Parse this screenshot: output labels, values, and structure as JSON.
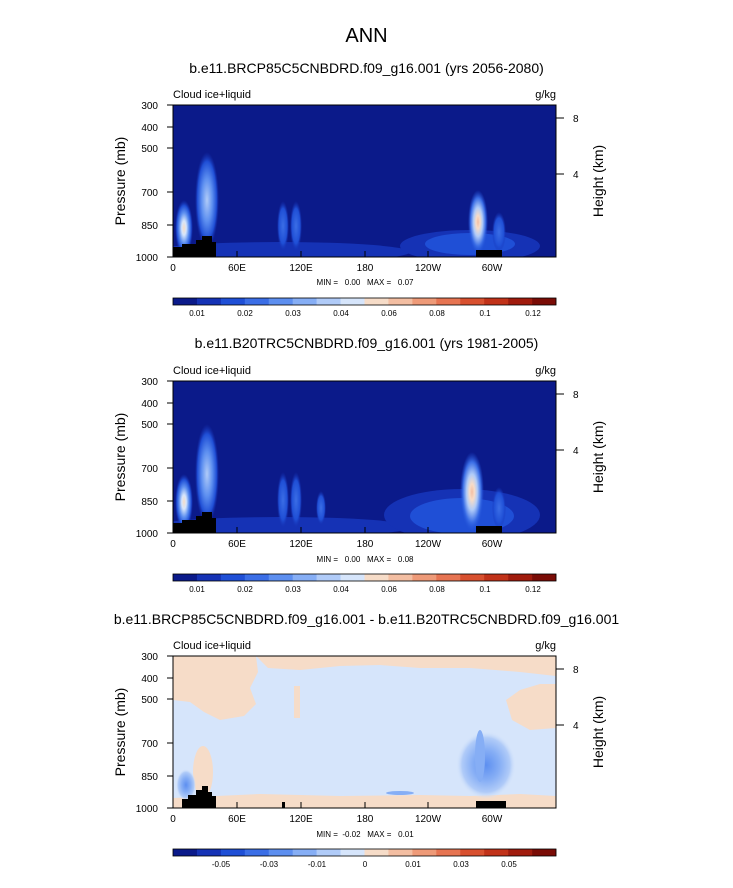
{
  "figure": {
    "title": "ANN"
  },
  "chart_data": [
    {
      "type": "heatmap",
      "title": "b.e11.BRCP85C5CNBDRD.f09_g16.001 (yrs 2056-2080)",
      "subtitle_left": "Cloud ice+liquid",
      "subtitle_right": "g/kg",
      "ylabel": "Pressure (mb)",
      "ylabel_right": "Height (km)",
      "x_ticks": [
        "0",
        "60E",
        "120E",
        "180",
        "120W",
        "60W"
      ],
      "y_ticks": [
        "300",
        "400",
        "500",
        "700",
        "850",
        "1000"
      ],
      "y_right_ticks": [
        "8",
        "4"
      ],
      "stats": "MIN =   0.00   MAX =   0.07",
      "min": 0.0,
      "max": 0.07,
      "colorbar": {
        "labels": [
          "0.01",
          "0.02",
          "0.03",
          "0.04",
          "0.06",
          "0.08",
          "0.1",
          "0.12"
        ],
        "colors": [
          "#0b1a8a",
          "#1532b5",
          "#1f4fd6",
          "#3b6ee6",
          "#5d8ff0",
          "#86aef5",
          "#b0cbf8",
          "#d6e5fb",
          "#f6dcc8",
          "#f3bea2",
          "#ee9a78",
          "#e67452",
          "#d8502f",
          "#c13219",
          "#a01b0d",
          "#7a0c06"
        ]
      },
      "features": [
        {
          "lon": 10,
          "p": 810,
          "value": 0.07
        },
        {
          "lon": 32,
          "p": 690,
          "value": 0.065
        },
        {
          "lon": 100,
          "p": 820,
          "value": 0.05
        },
        {
          "lon": 110,
          "p": 820,
          "value": 0.045
        },
        {
          "lon": 300,
          "p": 820,
          "value": 0.07
        },
        {
          "lon": 320,
          "p": 850,
          "value": 0.04
        }
      ]
    },
    {
      "type": "heatmap",
      "title": "b.e11.B20TRC5CNBDRD.f09_g16.001 (yrs 1981-2005)",
      "subtitle_left": "Cloud ice+liquid",
      "subtitle_right": "g/kg",
      "ylabel": "Pressure (mb)",
      "ylabel_right": "Height (km)",
      "x_ticks": [
        "0",
        "60E",
        "120E",
        "180",
        "120W",
        "60W"
      ],
      "y_ticks": [
        "300",
        "400",
        "500",
        "700",
        "850",
        "1000"
      ],
      "y_right_ticks": [
        "8",
        "4"
      ],
      "stats": "MIN =   0.00   MAX =   0.08",
      "min": 0.0,
      "max": 0.08,
      "colorbar": {
        "labels": [
          "0.01",
          "0.02",
          "0.03",
          "0.04",
          "0.06",
          "0.08",
          "0.1",
          "0.12"
        ],
        "colors": [
          "#0b1a8a",
          "#1532b5",
          "#1f4fd6",
          "#3b6ee6",
          "#5d8ff0",
          "#86aef5",
          "#b0cbf8",
          "#d6e5fb",
          "#f6dcc8",
          "#f3bea2",
          "#ee9a78",
          "#e67452",
          "#d8502f",
          "#c13219",
          "#a01b0d",
          "#7a0c06"
        ]
      },
      "features": [
        {
          "lon": 10,
          "p": 810,
          "value": 0.07
        },
        {
          "lon": 32,
          "p": 680,
          "value": 0.065
        },
        {
          "lon": 100,
          "p": 820,
          "value": 0.05
        },
        {
          "lon": 110,
          "p": 820,
          "value": 0.045
        },
        {
          "lon": 138,
          "p": 850,
          "value": 0.03
        },
        {
          "lon": 295,
          "p": 850,
          "value": 0.08
        },
        {
          "lon": 320,
          "p": 860,
          "value": 0.04
        }
      ]
    },
    {
      "type": "heatmap",
      "title": "b.e11.BRCP85C5CNBDRD.f09_g16.001 - b.e11.B20TRC5CNBDRD.f09_g16.001",
      "subtitle_left": "Cloud ice+liquid",
      "subtitle_right": "g/kg",
      "ylabel": "Pressure (mb)",
      "ylabel_right": "Height (km)",
      "x_ticks": [
        "0",
        "60E",
        "120E",
        "180",
        "120W",
        "60W"
      ],
      "y_ticks": [
        "300",
        "400",
        "500",
        "700",
        "850",
        "1000"
      ],
      "y_right_ticks": [
        "8",
        "4"
      ],
      "stats": "MIN =  -0.02   MAX =   0.01",
      "min": -0.02,
      "max": 0.01,
      "colorbar": {
        "labels": [
          "-0.05",
          "-0.03",
          "-0.01",
          "0",
          "0.01",
          "0.03",
          "0.05"
        ],
        "colors": [
          "#0b1a8a",
          "#1532b5",
          "#1f4fd6",
          "#3b6ee6",
          "#5d8ff0",
          "#86aef5",
          "#b0cbf8",
          "#d6e5fb",
          "#f6dcc8",
          "#f3bea2",
          "#ee9a78",
          "#e67452",
          "#d8502f",
          "#c13219",
          "#a01b0d",
          "#7a0c06"
        ]
      }
    }
  ]
}
